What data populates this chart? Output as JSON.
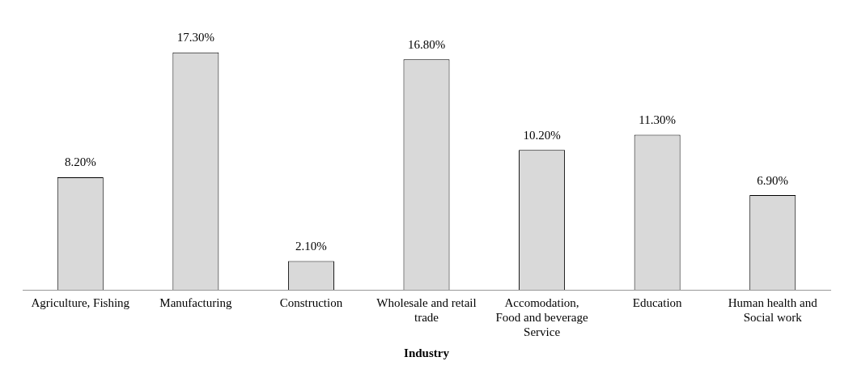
{
  "chart_data": {
    "type": "bar",
    "xlabel": "Industry",
    "categories": [
      "Agriculture, Fishing",
      "Manufacturing",
      "Construction",
      "Wholesale and retail trade",
      "Accomodation, Food and beverage Service",
      "Education",
      "Human health and Social work"
    ],
    "values": [
      8.2,
      17.3,
      2.1,
      16.8,
      10.2,
      11.3,
      6.9
    ],
    "value_labels": [
      "8.20%",
      "17.30%",
      "2.10%",
      "16.80%",
      "10.20%",
      "11.30%",
      "6.90%"
    ],
    "color": "#d9d9d9",
    "grid": false,
    "legend": false
  }
}
